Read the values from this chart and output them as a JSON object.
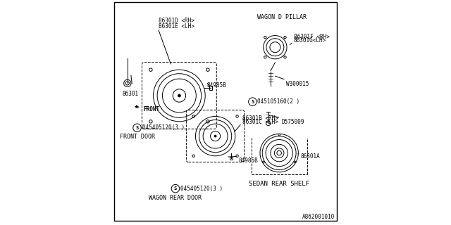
{
  "bg_color": "#ffffff",
  "line_color": "#000000",
  "text_color": "#000000",
  "fig_width": 6.4,
  "fig_height": 3.2,
  "dpi": 100,
  "bottom_right_code": "A862001010",
  "labels": {
    "86301D_RH": "86301D <RH>",
    "86301E_LH": "86301E <LH>",
    "84985B_top": "84985B",
    "86301": "86301",
    "front": "FRONT",
    "screw1": "045405120(3 )",
    "front_door": "FRONT DOOR",
    "86301B_RH": "86301B <RH>",
    "86301C_LH": "86301C <LH>",
    "84985B_mid": "84985B",
    "screw2": "045405120(3 )",
    "wagon_rear_door": "WAGON REAR DOOR",
    "wagon_d_pillar": "WAGON D PILLAR",
    "86301F_RH": "86301F <RH>",
    "86301G_LH": "86301G<LH>",
    "W300015": "W300015",
    "screw3": "045105160(2 )",
    "D575009": "D575009",
    "86301A": "86301A",
    "sedan_rear_shelf": "SEDAN REAR SHELF"
  }
}
